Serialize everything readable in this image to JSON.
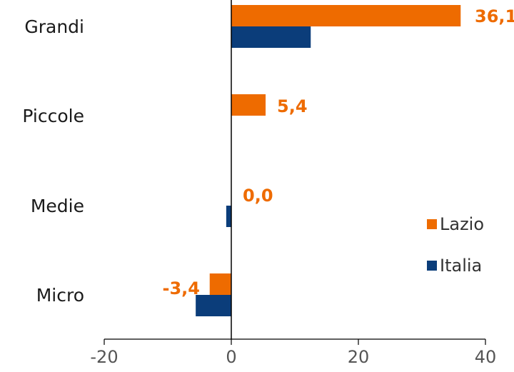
{
  "chart_data": {
    "type": "bar",
    "orientation": "horizontal",
    "categories": [
      "Grandi",
      "Piccole",
      "Medie",
      "Micro"
    ],
    "series": [
      {
        "name": "Lazio",
        "color": "#EE6B00",
        "values": [
          36.1,
          5.4,
          0.0,
          -3.4
        ],
        "labels": [
          "36,1",
          "5,4",
          "0,0",
          "-3,4"
        ]
      },
      {
        "name": "Italia",
        "color": "#0B3D7A",
        "values": [
          12.5,
          null,
          -0.8,
          -5.6
        ]
      }
    ],
    "xlim": [
      -20,
      40
    ],
    "xticks": [
      -20,
      0,
      20,
      40
    ],
    "grid": false,
    "legend": "right"
  }
}
